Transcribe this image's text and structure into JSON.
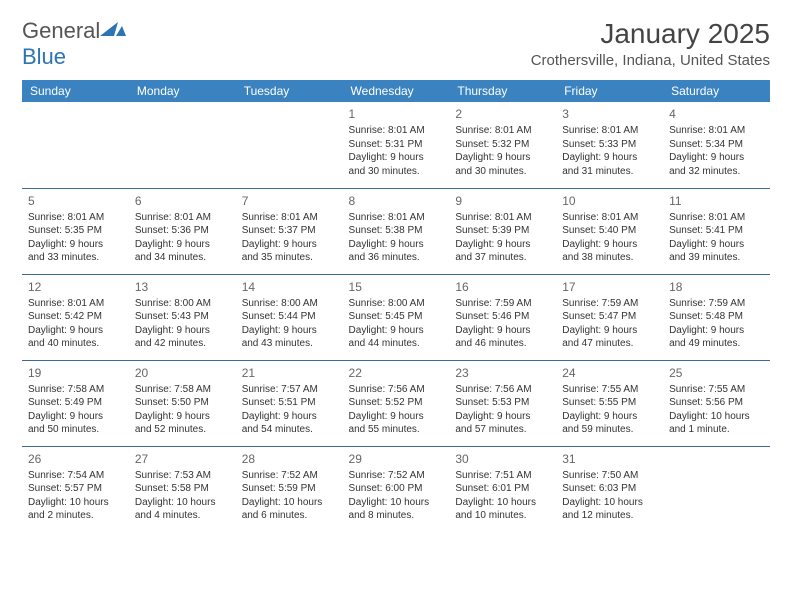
{
  "logo": {
    "text_general": "General",
    "text_blue": "Blue"
  },
  "title": "January 2025",
  "location": "Crothersville, Indiana, United States",
  "header_bg": "#3b83c0",
  "header_text_color": "#ffffff",
  "row_border_color": "#3b6a99",
  "day_headers": [
    "Sunday",
    "Monday",
    "Tuesday",
    "Wednesday",
    "Thursday",
    "Friday",
    "Saturday"
  ],
  "weeks": [
    [
      null,
      null,
      null,
      {
        "n": "1",
        "sr": "8:01 AM",
        "ss": "5:31 PM",
        "dl": "9 hours and 30 minutes."
      },
      {
        "n": "2",
        "sr": "8:01 AM",
        "ss": "5:32 PM",
        "dl": "9 hours and 30 minutes."
      },
      {
        "n": "3",
        "sr": "8:01 AM",
        "ss": "5:33 PM",
        "dl": "9 hours and 31 minutes."
      },
      {
        "n": "4",
        "sr": "8:01 AM",
        "ss": "5:34 PM",
        "dl": "9 hours and 32 minutes."
      }
    ],
    [
      {
        "n": "5",
        "sr": "8:01 AM",
        "ss": "5:35 PM",
        "dl": "9 hours and 33 minutes."
      },
      {
        "n": "6",
        "sr": "8:01 AM",
        "ss": "5:36 PM",
        "dl": "9 hours and 34 minutes."
      },
      {
        "n": "7",
        "sr": "8:01 AM",
        "ss": "5:37 PM",
        "dl": "9 hours and 35 minutes."
      },
      {
        "n": "8",
        "sr": "8:01 AM",
        "ss": "5:38 PM",
        "dl": "9 hours and 36 minutes."
      },
      {
        "n": "9",
        "sr": "8:01 AM",
        "ss": "5:39 PM",
        "dl": "9 hours and 37 minutes."
      },
      {
        "n": "10",
        "sr": "8:01 AM",
        "ss": "5:40 PM",
        "dl": "9 hours and 38 minutes."
      },
      {
        "n": "11",
        "sr": "8:01 AM",
        "ss": "5:41 PM",
        "dl": "9 hours and 39 minutes."
      }
    ],
    [
      {
        "n": "12",
        "sr": "8:01 AM",
        "ss": "5:42 PM",
        "dl": "9 hours and 40 minutes."
      },
      {
        "n": "13",
        "sr": "8:00 AM",
        "ss": "5:43 PM",
        "dl": "9 hours and 42 minutes."
      },
      {
        "n": "14",
        "sr": "8:00 AM",
        "ss": "5:44 PM",
        "dl": "9 hours and 43 minutes."
      },
      {
        "n": "15",
        "sr": "8:00 AM",
        "ss": "5:45 PM",
        "dl": "9 hours and 44 minutes."
      },
      {
        "n": "16",
        "sr": "7:59 AM",
        "ss": "5:46 PM",
        "dl": "9 hours and 46 minutes."
      },
      {
        "n": "17",
        "sr": "7:59 AM",
        "ss": "5:47 PM",
        "dl": "9 hours and 47 minutes."
      },
      {
        "n": "18",
        "sr": "7:59 AM",
        "ss": "5:48 PM",
        "dl": "9 hours and 49 minutes."
      }
    ],
    [
      {
        "n": "19",
        "sr": "7:58 AM",
        "ss": "5:49 PM",
        "dl": "9 hours and 50 minutes."
      },
      {
        "n": "20",
        "sr": "7:58 AM",
        "ss": "5:50 PM",
        "dl": "9 hours and 52 minutes."
      },
      {
        "n": "21",
        "sr": "7:57 AM",
        "ss": "5:51 PM",
        "dl": "9 hours and 54 minutes."
      },
      {
        "n": "22",
        "sr": "7:56 AM",
        "ss": "5:52 PM",
        "dl": "9 hours and 55 minutes."
      },
      {
        "n": "23",
        "sr": "7:56 AM",
        "ss": "5:53 PM",
        "dl": "9 hours and 57 minutes."
      },
      {
        "n": "24",
        "sr": "7:55 AM",
        "ss": "5:55 PM",
        "dl": "9 hours and 59 minutes."
      },
      {
        "n": "25",
        "sr": "7:55 AM",
        "ss": "5:56 PM",
        "dl": "10 hours and 1 minute."
      }
    ],
    [
      {
        "n": "26",
        "sr": "7:54 AM",
        "ss": "5:57 PM",
        "dl": "10 hours and 2 minutes."
      },
      {
        "n": "27",
        "sr": "7:53 AM",
        "ss": "5:58 PM",
        "dl": "10 hours and 4 minutes."
      },
      {
        "n": "28",
        "sr": "7:52 AM",
        "ss": "5:59 PM",
        "dl": "10 hours and 6 minutes."
      },
      {
        "n": "29",
        "sr": "7:52 AM",
        "ss": "6:00 PM",
        "dl": "10 hours and 8 minutes."
      },
      {
        "n": "30",
        "sr": "7:51 AM",
        "ss": "6:01 PM",
        "dl": "10 hours and 10 minutes."
      },
      {
        "n": "31",
        "sr": "7:50 AM",
        "ss": "6:03 PM",
        "dl": "10 hours and 12 minutes."
      },
      null
    ]
  ],
  "labels": {
    "sunrise": "Sunrise:",
    "sunset": "Sunset:",
    "daylight": "Daylight:"
  }
}
